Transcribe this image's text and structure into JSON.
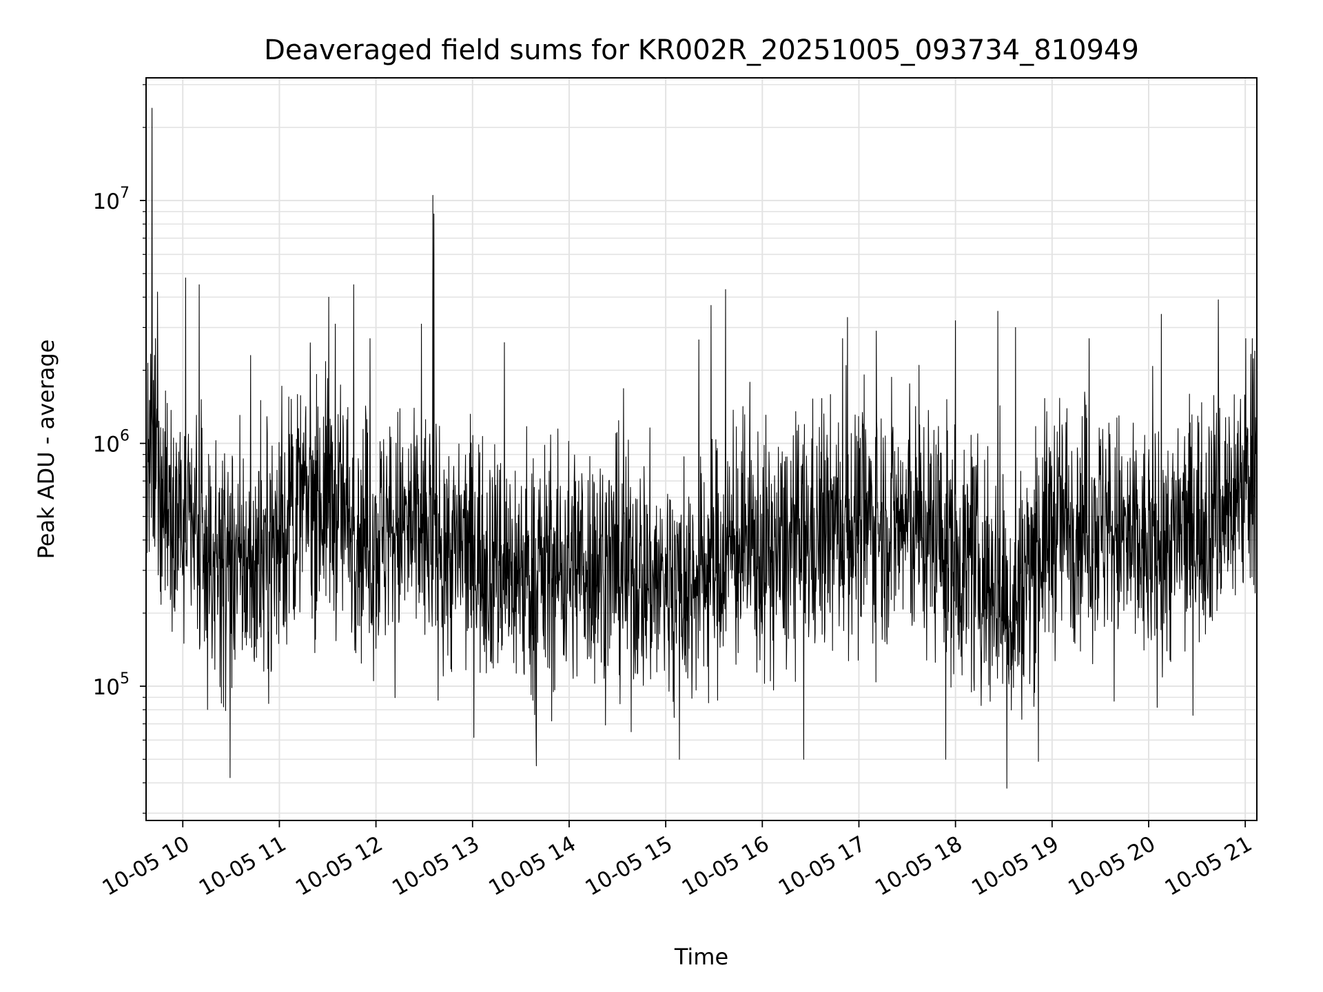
{
  "chart_data": {
    "type": "line",
    "title": "Deaveraged field sums for KR002R_20251005_093734_810949",
    "xlabel": "Time",
    "ylabel": "Peak ADU - average",
    "y_scale": "log",
    "ylim": [
      28000,
      32000000
    ],
    "xlim_hours": [
      9.62,
      21.12
    ],
    "grid": true,
    "line_color": "#000000",
    "x_ticks": [
      {
        "label": "10-05 10",
        "value": 10
      },
      {
        "label": "10-05 11",
        "value": 11
      },
      {
        "label": "10-05 12",
        "value": 12
      },
      {
        "label": "10-05 13",
        "value": 13
      },
      {
        "label": "10-05 14",
        "value": 14
      },
      {
        "label": "10-05 15",
        "value": 15
      },
      {
        "label": "10-05 16",
        "value": 16
      },
      {
        "label": "10-05 17",
        "value": 17
      },
      {
        "label": "10-05 18",
        "value": 18
      },
      {
        "label": "10-05 19",
        "value": 19
      },
      {
        "label": "10-05 20",
        "value": 20
      },
      {
        "label": "10-05 21",
        "value": 21
      }
    ],
    "y_ticks": [
      {
        "base": "10",
        "exp": "5",
        "value": 100000
      },
      {
        "base": "10",
        "exp": "6",
        "value": 1000000
      },
      {
        "base": "10",
        "exp": "7",
        "value": 10000000
      }
    ],
    "series": [
      {
        "name": "Peak ADU - average",
        "x_hours": [
          9.62,
          9.7,
          9.8,
          9.9,
          10.0,
          10.2,
          10.4,
          10.6,
          10.8,
          11.0,
          11.2,
          11.4,
          11.6,
          11.8,
          12.0,
          12.2,
          12.4,
          12.6,
          12.8,
          13.0,
          13.2,
          13.4,
          13.6,
          13.8,
          14.0,
          14.2,
          14.4,
          14.6,
          14.8,
          15.0,
          15.2,
          15.4,
          15.6,
          15.8,
          16.0,
          16.2,
          16.4,
          16.6,
          16.8,
          17.0,
          17.2,
          17.4,
          17.6,
          17.8,
          18.0,
          18.2,
          18.4,
          18.6,
          18.8,
          19.0,
          19.2,
          19.4,
          19.6,
          19.8,
          20.0,
          20.2,
          20.4,
          20.6,
          20.8,
          21.0,
          21.12
        ],
        "baseline": [
          700000,
          800000,
          650000,
          600000,
          450000,
          350000,
          320000,
          300000,
          330000,
          400000,
          550000,
          600000,
          550000,
          450000,
          400000,
          450000,
          430000,
          400000,
          350000,
          380000,
          330000,
          300000,
          280000,
          300000,
          320000,
          330000,
          320000,
          300000,
          280000,
          270000,
          250000,
          300000,
          350000,
          380000,
          350000,
          350000,
          400000,
          430000,
          450000,
          470000,
          480000,
          470000,
          450000,
          430000,
          350000,
          300000,
          250000,
          200000,
          350000,
          450000,
          500000,
          480000,
          450000,
          380000,
          350000,
          380000,
          450000,
          500000,
          550000,
          700000,
          1100000
        ],
        "spread_decades": 0.45,
        "spikes": [
          {
            "x": 9.68,
            "value": 24000000
          },
          {
            "x": 12.59,
            "value": 10500000
          },
          {
            "x": 12.6,
            "value": 8800000
          },
          {
            "x": 10.03,
            "value": 4800000
          },
          {
            "x": 10.17,
            "value": 4500000
          },
          {
            "x": 11.51,
            "value": 4000000
          },
          {
            "x": 11.77,
            "value": 4500000
          },
          {
            "x": 15.62,
            "value": 4300000
          },
          {
            "x": 20.72,
            "value": 3900000
          },
          {
            "x": 15.47,
            "value": 3700000
          },
          {
            "x": 18.44,
            "value": 3500000
          },
          {
            "x": 20.13,
            "value": 3400000
          },
          {
            "x": 16.88,
            "value": 3300000
          },
          {
            "x": 12.47,
            "value": 3100000
          },
          {
            "x": 9.74,
            "value": 4200000
          },
          {
            "x": 18.0,
            "value": 3200000
          },
          {
            "x": 18.62,
            "value": 3000000
          },
          {
            "x": 17.18,
            "value": 2900000
          },
          {
            "x": 11.58,
            "value": 3100000
          },
          {
            "x": 13.33,
            "value": 2600000
          },
          {
            "x": 21.1,
            "value": 2400000
          },
          {
            "x": 18.53,
            "value": 38000
          },
          {
            "x": 10.49,
            "value": 42000
          },
          {
            "x": 13.66,
            "value": 47000
          },
          {
            "x": 15.14,
            "value": 50000
          },
          {
            "x": 16.43,
            "value": 50000
          },
          {
            "x": 18.86,
            "value": 49000
          },
          {
            "x": 17.9,
            "value": 50000
          }
        ]
      }
    ]
  }
}
